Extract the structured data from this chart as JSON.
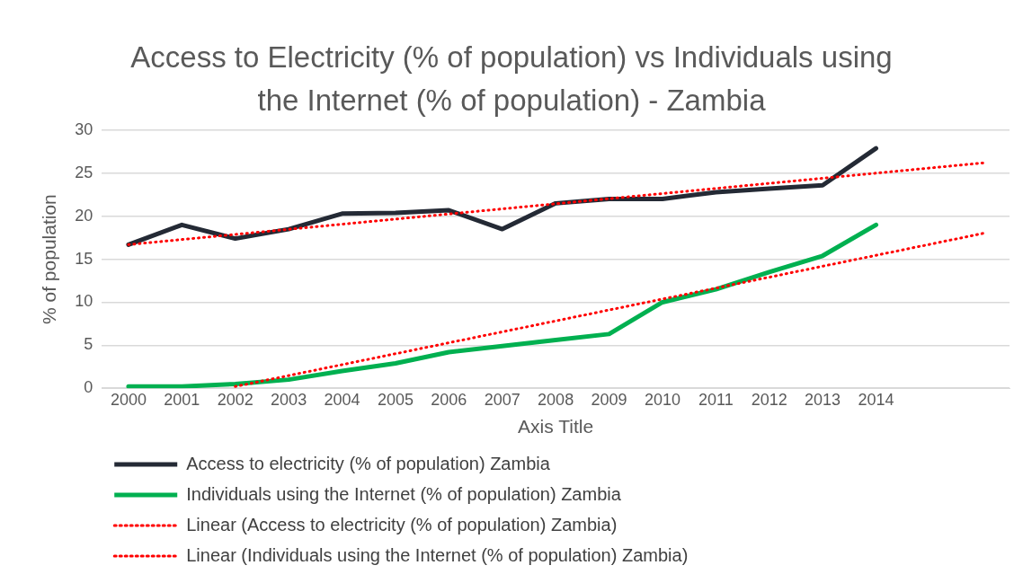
{
  "chart_data": {
    "type": "line",
    "title": "Access to Electricity (% of population) vs Individuals using the Internet (% of population) - Zambia",
    "xlabel": "Axis Title",
    "ylabel": "% of population",
    "x": [
      2000,
      2001,
      2002,
      2003,
      2004,
      2005,
      2006,
      2007,
      2008,
      2009,
      2010,
      2011,
      2012,
      2013,
      2014
    ],
    "xlim": [
      1999.5,
      2016.5
    ],
    "xticks": [
      2000,
      2001,
      2002,
      2003,
      2004,
      2005,
      2006,
      2007,
      2008,
      2009,
      2010,
      2011,
      2012,
      2013,
      2014
    ],
    "ylim": [
      0,
      30
    ],
    "yticks": [
      0,
      5,
      10,
      15,
      20,
      25,
      30
    ],
    "grid": "y",
    "legend": "bottom",
    "marker": "none",
    "series": [
      {
        "name": "Access to electricity (% of population) Zambia",
        "color": "#242a35",
        "line_style": "solid",
        "values": [
          16.7,
          19,
          17.4,
          18.5,
          20.3,
          20.4,
          20.7,
          18.5,
          21.5,
          22,
          22,
          22.8,
          23.2,
          23.6,
          27.9
        ]
      },
      {
        "name": "Individuals using the Internet (% of population) Zambia",
        "color": "#00b050",
        "line_style": "solid",
        "values": [
          0.2,
          0.2,
          0.5,
          1,
          2,
          2.9,
          4.2,
          4.9,
          5.6,
          6.3,
          10,
          11.5,
          13.5,
          15.4,
          19
        ]
      },
      {
        "name": "Linear (Access to electricity (% of population) Zambia)",
        "color": "#ff0000",
        "line_style": "dotted",
        "x": [
          2000,
          2016
        ],
        "values": [
          16.7,
          26.2
        ]
      },
      {
        "name": "Linear (Individuals using the Internet (% of population) Zambia)",
        "color": "#ff0000",
        "line_style": "dotted",
        "x": [
          2002,
          2016
        ],
        "values": [
          0.2,
          18
        ]
      }
    ]
  }
}
